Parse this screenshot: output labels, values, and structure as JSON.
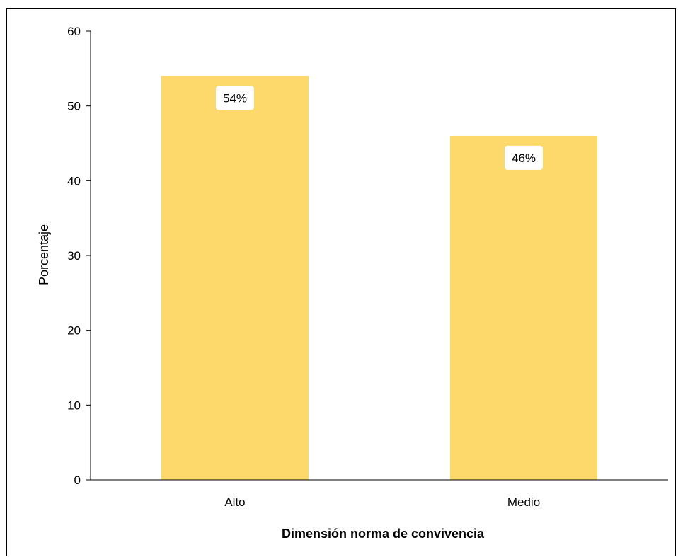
{
  "chart_data": {
    "type": "bar",
    "categories": [
      "Alto",
      "Medio"
    ],
    "values": [
      54,
      46
    ],
    "data_labels": [
      "54%",
      "46%"
    ],
    "xlabel": "Dimensión norma de convivencia",
    "ylabel": "Porcentaje",
    "ylim": [
      0,
      60
    ],
    "yticks": [
      0,
      10,
      20,
      30,
      40,
      50,
      60
    ],
    "grid": false,
    "legend": "none",
    "bar_color": "#FCD96A"
  }
}
